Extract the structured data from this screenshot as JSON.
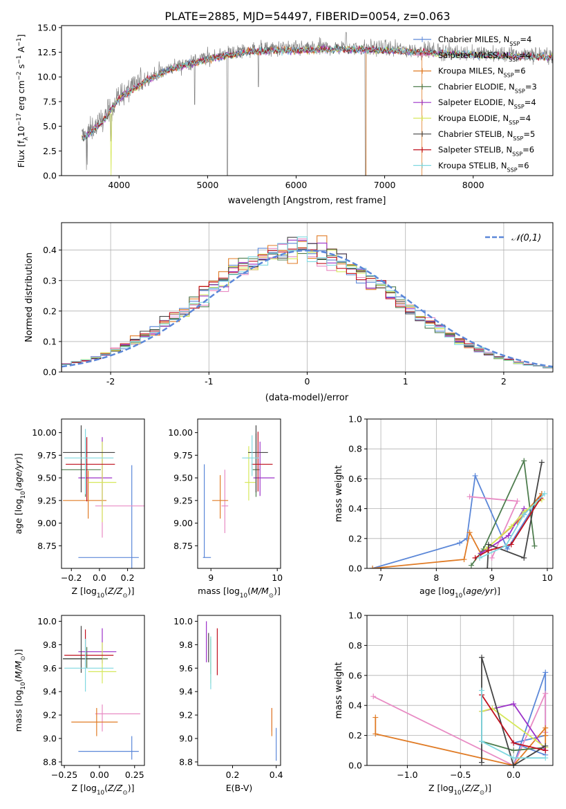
{
  "figure": {
    "title": "PLATE=2885, MJD=54497, FIBERID=0054, z=0.063"
  },
  "series_styles": [
    {
      "name": "Chabrier MILES, N_SSP=4",
      "color": "#5b87d8"
    },
    {
      "name": "Salpeter MILES, N_SSP=4",
      "color": "#e88bc4"
    },
    {
      "name": "Kroupa MILES, N_SSP=6",
      "color": "#e07b25"
    },
    {
      "name": "Chabrier ELODIE, N_SSP=3",
      "color": "#4e7d4e"
    },
    {
      "name": "Salpeter ELODIE, N_SSP=4",
      "color": "#9b30c8"
    },
    {
      "name": "Kroupa ELODIE, N_SSP=4",
      "color": "#d6e85a"
    },
    {
      "name": "Chabrier STELIB, N_SSP=5",
      "color": "#444444"
    },
    {
      "name": "Salpeter STELIB, N_SSP=6",
      "color": "#c0101e"
    },
    {
      "name": "Kroupa STELIB, N_SSP=6",
      "color": "#7fd8e0"
    }
  ],
  "chart_data": [
    {
      "id": "spectrum",
      "type": "line",
      "xlabel": "wavelength [Angstrom, rest frame]",
      "ylabel": "Flux [f_λ 10^-17 erg cm^-2 s^-1 A^-1]",
      "xlim": [
        3350,
        8900
      ],
      "ylim": [
        0,
        15.2
      ],
      "xticks": [
        4000,
        5000,
        6000,
        7000,
        8000
      ],
      "yticks": [
        0.0,
        2.5,
        5.0,
        7.5,
        10.0,
        12.5,
        15.0
      ],
      "ytick_labels": [
        "0.0",
        "2.5",
        "5.0",
        "7.5",
        "10.0",
        "12.5",
        "15.0"
      ],
      "legend": [
        "Chabrier MILES, N_SSP=4",
        "Salpeter MILES, N_SSP=4",
        "Kroupa MILES, N_SSP=6",
        "Chabrier ELODIE, N_SSP=3",
        "Salpeter ELODIE, N_SSP=4",
        "Kroupa ELODIE, N_SSP=4",
        "Chabrier STELIB, N_SSP=5",
        "Salpeter STELIB, N_SSP=6",
        "Kroupa STELIB, N_SSP=6"
      ],
      "legend_loc": "lower-right",
      "data_trend": {
        "x": [
          3600,
          3800,
          4000,
          4300,
          4600,
          5000,
          5500,
          6000,
          6500,
          7000,
          7400,
          8000,
          8900
        ],
        "y": [
          4.0,
          5.5,
          8.0,
          9.8,
          11.0,
          12.0,
          12.8,
          12.9,
          13.0,
          12.9,
          12.7,
          12.4,
          12.2
        ]
      }
    },
    {
      "id": "residuals",
      "type": "histogram",
      "xlabel": "(data-model)/error",
      "ylabel": "Normed distribution",
      "xlim": [
        -2.5,
        2.5
      ],
      "ylim": [
        0,
        0.49
      ],
      "xticks": [
        -2,
        -1,
        0,
        1,
        2
      ],
      "yticks": [
        0.0,
        0.1,
        0.2,
        0.3,
        0.4
      ],
      "ytick_labels": [
        "0.0",
        "0.1",
        "0.2",
        "0.3",
        "0.4"
      ],
      "grid": true,
      "reference_label": "𝒩(0,1)",
      "legend_loc": "upper-right",
      "bin_width": 0.1
    },
    {
      "id": "age-vs-Z",
      "type": "errorbar",
      "xlabel": "Z [log10(Z/Z☉)]",
      "ylabel": "age [log10(age/yr)]",
      "xlim": [
        -0.27,
        0.32
      ],
      "ylim": [
        8.5,
        10.15
      ],
      "xticks": [
        -0.2,
        0.0,
        0.2
      ],
      "xtick_labels": [
        "−0.2",
        "0.0",
        "0.2"
      ],
      "yticks": [
        8.75,
        9.0,
        9.25,
        9.5,
        9.75,
        10.0
      ],
      "ytick_labels": [
        "8.75",
        "9.00",
        "9.25",
        "9.50",
        "9.75",
        "10.00"
      ],
      "points": [
        {
          "series": 0,
          "x": 0.23,
          "y": 8.62,
          "xerr": [
            0.38,
            0.05
          ],
          "yerr": [
            0.2,
            1.02
          ]
        },
        {
          "series": 1,
          "x": 0.02,
          "y": 9.19,
          "xerr": [
            0.05,
            0.46
          ],
          "yerr": [
            0.35,
            0.51
          ]
        },
        {
          "series": 2,
          "x": -0.08,
          "y": 9.25,
          "xerr": [
            0.18,
            0.13
          ],
          "yerr": [
            0.2,
            0.33
          ]
        },
        {
          "series": 3,
          "x": -0.1,
          "y": 9.59,
          "xerr": [
            0.17,
            0.11
          ],
          "yerr": [
            0.3,
            0.35
          ]
        },
        {
          "series": 4,
          "x": 0.02,
          "y": 9.5,
          "xerr": [
            0.17,
            0.07
          ],
          "yerr": [
            0.31,
            0.45
          ]
        },
        {
          "series": 5,
          "x": 0.02,
          "y": 9.45,
          "xerr": [
            0.1,
            0.1
          ],
          "yerr": [
            0.44,
            0.45
          ]
        },
        {
          "series": 6,
          "x": -0.13,
          "y": 9.78,
          "xerr": [
            0.13,
            0.24
          ],
          "yerr": [
            0.44,
            0.3
          ]
        },
        {
          "series": 7,
          "x": -0.09,
          "y": 9.65,
          "xerr": [
            0.15,
            0.2
          ],
          "yerr": [
            0.41,
            0.3
          ]
        },
        {
          "series": 8,
          "x": -0.1,
          "y": 9.72,
          "xerr": [
            0.15,
            0.2
          ],
          "yerr": [
            0.4,
            0.32
          ]
        }
      ]
    },
    {
      "id": "age-vs-mass",
      "type": "errorbar",
      "xlabel": "mass [log10(M/M☉)]",
      "ylabel": "",
      "xlim": [
        8.8,
        10.05
      ],
      "ylim": [
        8.5,
        10.15
      ],
      "xticks": [
        9,
        10
      ],
      "xtick_labels": [
        "9",
        "10"
      ],
      "yticks": [
        8.75,
        9.0,
        9.25,
        9.5,
        9.75,
        10.0
      ],
      "ytick_labels": [
        "8.75",
        "9.00",
        "9.25",
        "9.50",
        "9.75",
        "10.00"
      ],
      "points": [
        {
          "series": 0,
          "x": 8.9,
          "y": 8.62,
          "xerr": [
            0.02,
            0.1
          ],
          "yerr": [
            0.0,
            1.03
          ]
        },
        {
          "series": 1,
          "x": 9.21,
          "y": 9.19,
          "xerr": [
            0.05,
            0.05
          ],
          "yerr": [
            0.3,
            0.4
          ]
        },
        {
          "series": 2,
          "x": 9.14,
          "y": 9.25,
          "xerr": [
            0.12,
            0.12
          ],
          "yerr": [
            0.2,
            0.28
          ]
        },
        {
          "series": 3,
          "x": 9.68,
          "y": 9.59,
          "xerr": [
            0.05,
            0.05
          ],
          "yerr": [
            0.3,
            0.4
          ]
        },
        {
          "series": 4,
          "x": 9.74,
          "y": 9.5,
          "xerr": [
            0.1,
            0.22
          ],
          "yerr": [
            0.2,
            0.4
          ]
        },
        {
          "series": 5,
          "x": 9.57,
          "y": 9.45,
          "xerr": [
            0.06,
            0.1
          ],
          "yerr": [
            0.2,
            0.4
          ]
        },
        {
          "series": 6,
          "x": 9.68,
          "y": 9.78,
          "xerr": [
            0.12,
            0.18
          ],
          "yerr": [
            0.44,
            0.3
          ]
        },
        {
          "series": 7,
          "x": 9.71,
          "y": 9.65,
          "xerr": [
            0.1,
            0.22
          ],
          "yerr": [
            0.3,
            0.36
          ]
        },
        {
          "series": 8,
          "x": 9.62,
          "y": 9.72,
          "xerr": [
            0.15,
            0.1
          ],
          "yerr": [
            0.2,
            0.25
          ]
        }
      ]
    },
    {
      "id": "weight-vs-age",
      "type": "line",
      "xlabel": "age [log10(age/yr)]",
      "ylabel": "mass weight",
      "xlim": [
        6.75,
        10.1
      ],
      "ylim": [
        0,
        1.0
      ],
      "xticks": [
        7,
        8,
        9,
        10
      ],
      "xtick_labels": [
        "7",
        "8",
        "9",
        "10"
      ],
      "yticks": [
        0.0,
        0.2,
        0.4,
        0.6,
        0.8,
        1.0
      ],
      "ytick_labels": [
        "0.0",
        "0.2",
        "0.4",
        "0.6",
        "0.8",
        "1.0"
      ],
      "grid": true,
      "series": [
        {
          "style": 0,
          "x": [
            6.85,
            8.42,
            8.55,
            8.7,
            9.28,
            9.9
          ],
          "y": [
            0.0,
            0.17,
            0.2,
            0.62,
            0.13,
            0.5
          ]
        },
        {
          "style": 1,
          "x": 8.6,
          "y": 0.48,
          "x2": [
            8.6,
            9.46,
            9.0
          ],
          "y2": [
            0.48,
            0.45,
            0.07
          ]
        },
        {
          "style": 2,
          "x": [
            6.85,
            8.5,
            8.6,
            8.8,
            9.46,
            9.9
          ],
          "y": [
            0.0,
            0.06,
            0.24,
            0.1,
            0.31,
            0.5
          ]
        },
        {
          "style": 3,
          "x": [
            8.63,
            8.85,
            9.58,
            9.77
          ],
          "y": [
            0.02,
            0.13,
            0.72,
            0.15
          ]
        },
        {
          "style": 4,
          "x": [
            8.8,
            9.3,
            9.58,
            9.58
          ],
          "y": [
            0.1,
            0.22,
            0.4,
            0.36
          ]
        },
        {
          "style": 5,
          "x": [
            8.9,
            9.35,
            9.58,
            9.9
          ],
          "y": [
            0.13,
            0.28,
            0.38,
            0.46
          ]
        },
        {
          "style": 6,
          "x": [
            8.92,
            8.94,
            9.58,
            9.9
          ],
          "y": [
            0.0,
            0.16,
            0.07,
            0.71
          ]
        },
        {
          "style": 7,
          "x": [
            8.7,
            8.94,
            9.35,
            9.88
          ],
          "y": [
            0.07,
            0.12,
            0.16,
            0.47
          ]
        },
        {
          "style": 8,
          "x": [
            8.78,
            9.25,
            9.58,
            9.95
          ],
          "y": [
            0.07,
            0.15,
            0.36,
            0.5
          ]
        }
      ]
    },
    {
      "id": "mass-vs-Z",
      "type": "errorbar",
      "xlabel": "Z [log10(Z/Z☉)]",
      "ylabel": "mass [log10(M/M☉)]",
      "xlim": [
        -0.27,
        0.32
      ],
      "ylim": [
        8.77,
        10.05
      ],
      "xticks": [
        -0.25,
        0.0,
        0.25
      ],
      "xtick_labels": [
        "−0.25",
        "0.00",
        "0.25"
      ],
      "yticks": [
        8.8,
        9.0,
        9.2,
        9.4,
        9.6,
        9.8,
        10.0
      ],
      "ytick_labels": [
        "8.8",
        "9.0",
        "9.2",
        "9.4",
        "9.6",
        "9.8",
        "10.0"
      ],
      "points": [
        {
          "series": 0,
          "x": 0.23,
          "y": 8.89,
          "xerr": [
            0.38,
            0.05
          ],
          "yerr": [
            0.07,
            0.13
          ]
        },
        {
          "series": 1,
          "x": 0.02,
          "y": 9.21,
          "xerr": [
            0.05,
            0.27
          ],
          "yerr": [
            0.15,
            0.08
          ]
        },
        {
          "series": 2,
          "x": -0.02,
          "y": 9.14,
          "xerr": [
            0.18,
            0.15
          ],
          "yerr": [
            0.12,
            0.12
          ]
        },
        {
          "series": 3,
          "x": -0.09,
          "y": 9.68,
          "xerr": [
            0.17,
            0.15
          ],
          "yerr": [
            0.08,
            0.1
          ]
        },
        {
          "series": 4,
          "x": 0.02,
          "y": 9.74,
          "xerr": [
            0.17,
            0.1
          ],
          "yerr": [
            0.1,
            0.2
          ]
        },
        {
          "series": 5,
          "x": 0.02,
          "y": 9.57,
          "xerr": [
            0.1,
            0.1
          ],
          "yerr": [
            0.1,
            0.25
          ]
        },
        {
          "series": 6,
          "x": -0.13,
          "y": 9.68,
          "xerr": [
            0.13,
            0.15
          ],
          "yerr": [
            0.12,
            0.28
          ]
        },
        {
          "series": 7,
          "x": -0.1,
          "y": 9.71,
          "xerr": [
            0.15,
            0.2
          ],
          "yerr": [
            0.1,
            0.22
          ]
        },
        {
          "series": 8,
          "x": -0.1,
          "y": 9.6,
          "xerr": [
            0.15,
            0.2
          ],
          "yerr": [
            0.2,
            0.25
          ]
        }
      ]
    },
    {
      "id": "mass-vs-EBV",
      "type": "errorbar",
      "xlabel": "E(B-V)",
      "ylabel": "",
      "xlim": [
        0.04,
        0.42
      ],
      "ylim": [
        8.77,
        10.05
      ],
      "xticks": [
        0.2,
        0.4
      ],
      "xtick_labels": [
        "0.2",
        "0.4"
      ],
      "yticks": [
        8.8,
        9.0,
        9.2,
        9.4,
        9.6,
        9.8,
        10.0
      ],
      "ytick_labels": [
        "8.8",
        "9.0",
        "9.2",
        "9.4",
        "9.6",
        "9.8",
        "10.0"
      ],
      "points": [
        {
          "series": 0,
          "x": 0.4,
          "y": 8.89,
          "xerr": [
            0,
            0
          ],
          "yerr": [
            0.08,
            0.2
          ]
        },
        {
          "series": 1,
          "x": 0.38,
          "y": 9.14,
          "xerr": [
            0,
            0
          ],
          "yerr": [
            0.08,
            0.12
          ]
        },
        {
          "series": 2,
          "x": 0.38,
          "y": 9.14,
          "xerr": [
            0,
            0
          ],
          "yerr": [
            0.12,
            0.12
          ]
        },
        {
          "series": 3,
          "x": 0.1,
          "y": 9.7,
          "xerr": [
            0,
            0
          ],
          "yerr": [
            0.15,
            0.15
          ]
        },
        {
          "series": 4,
          "x": 0.08,
          "y": 9.8,
          "xerr": [
            0,
            0
          ],
          "yerr": [
            0.15,
            0.2
          ]
        },
        {
          "series": 5,
          "x": 0.1,
          "y": 9.57,
          "xerr": [
            0,
            0
          ],
          "yerr": [
            0.1,
            0.3
          ]
        },
        {
          "series": 6,
          "x": 0.09,
          "y": 9.7,
          "xerr": [
            0,
            0
          ],
          "yerr": [
            0.05,
            0.2
          ]
        },
        {
          "series": 7,
          "x": 0.13,
          "y": 9.72,
          "xerr": [
            0,
            0
          ],
          "yerr": [
            0.18,
            0.22
          ]
        },
        {
          "series": 8,
          "x": 0.1,
          "y": 9.62,
          "xerr": [
            0,
            0
          ],
          "yerr": [
            0.2,
            0.25
          ]
        }
      ]
    },
    {
      "id": "weight-vs-Z",
      "type": "line",
      "xlabel": "Z [log10(Z/Z☉)]",
      "ylabel": "mass weight",
      "xlim": [
        -1.38,
        0.37
      ],
      "ylim": [
        0,
        1.0
      ],
      "xticks": [
        -1.0,
        -0.5,
        0.0
      ],
      "xtick_labels": [
        "−1.0",
        "−0.5",
        "0.0"
      ],
      "yticks": [
        0.0,
        0.2,
        0.4,
        0.6,
        0.8,
        1.0
      ],
      "ytick_labels": [
        "0.0",
        "0.2",
        "0.4",
        "0.6",
        "0.8",
        "1.0"
      ],
      "grid": true,
      "series": [
        {
          "style": 0,
          "x": [
            0.0,
            0.3,
            0.3,
            0.0,
            0.3
          ],
          "y": [
            0.0,
            0.62,
            0.2,
            0.15,
            0.07
          ]
        },
        {
          "style": 1,
          "x": [
            -1.32,
            0.0,
            0.3,
            0.3
          ],
          "y": [
            0.46,
            0.0,
            0.48,
            0.22
          ]
        },
        {
          "style": 2,
          "x": [
            -1.3,
            -1.3,
            0.0,
            0.3,
            0.3,
            0.3
          ],
          "y": [
            0.32,
            0.21,
            0.0,
            0.25,
            0.2,
            0.1
          ]
        },
        {
          "style": 3,
          "x": [
            -0.3,
            0.0,
            0.3
          ],
          "y": [
            0.16,
            0.1,
            0.12
          ]
        },
        {
          "style": 4,
          "x": [
            -0.3,
            0.0,
            0.3
          ],
          "y": [
            0.36,
            0.41,
            0.1
          ]
        },
        {
          "style": 5,
          "x": [
            -0.3,
            -0.2,
            0.3
          ],
          "y": [
            0.36,
            0.38,
            0.12
          ]
        },
        {
          "style": 6,
          "x": [
            -0.3,
            -0.3,
            0.0,
            0.3
          ],
          "y": [
            0.02,
            0.72,
            0.0,
            0.13
          ]
        },
        {
          "style": 7,
          "x": [
            -0.3,
            0.0,
            0.3
          ],
          "y": [
            0.47,
            0.15,
            0.1
          ]
        },
        {
          "style": 8,
          "x": [
            -0.3,
            -0.3,
            0.0,
            0.3
          ],
          "y": [
            0.5,
            0.16,
            0.05,
            0.05
          ]
        }
      ]
    }
  ]
}
